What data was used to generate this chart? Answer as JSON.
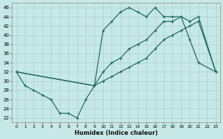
{
  "xlabel": "Humidex (Indice chaleur)",
  "bg_color": "#c6e8e6",
  "line_color": "#1a6b5a",
  "grid_color": "#a8cece",
  "xlim": [
    -0.5,
    23.5
  ],
  "ylim": [
    21,
    47
  ],
  "yticks": [
    22,
    24,
    26,
    28,
    30,
    32,
    34,
    36,
    38,
    40,
    42,
    44,
    46
  ],
  "xticks": [
    0,
    1,
    2,
    3,
    4,
    5,
    6,
    7,
    8,
    9,
    10,
    11,
    12,
    13,
    14,
    15,
    16,
    17,
    18,
    19,
    20,
    21,
    22,
    23
  ],
  "line1_x": [
    0,
    1,
    2,
    3,
    4,
    5,
    6,
    7,
    8,
    9,
    10,
    11,
    12,
    13,
    14,
    15,
    16,
    17,
    18,
    19,
    20,
    21,
    23
  ],
  "line1_y": [
    32,
    29,
    28,
    27,
    26,
    23,
    23,
    22,
    26,
    29,
    41,
    43,
    45,
    46,
    45,
    44,
    46,
    44,
    44,
    44,
    39,
    34,
    32
  ],
  "line2_x": [
    0,
    9,
    10,
    11,
    12,
    13,
    14,
    15,
    16,
    17,
    18,
    19,
    20,
    21,
    23
  ],
  "line2_y": [
    32,
    29,
    32,
    34,
    35,
    37,
    38,
    39,
    41,
    43,
    43,
    44,
    43,
    44,
    32
  ],
  "line3_x": [
    0,
    9,
    10,
    11,
    12,
    13,
    14,
    15,
    16,
    17,
    18,
    19,
    20,
    21,
    23
  ],
  "line3_y": [
    32,
    29,
    30,
    31,
    32,
    33,
    34,
    35,
    37,
    39,
    40,
    41,
    42,
    43,
    32
  ]
}
